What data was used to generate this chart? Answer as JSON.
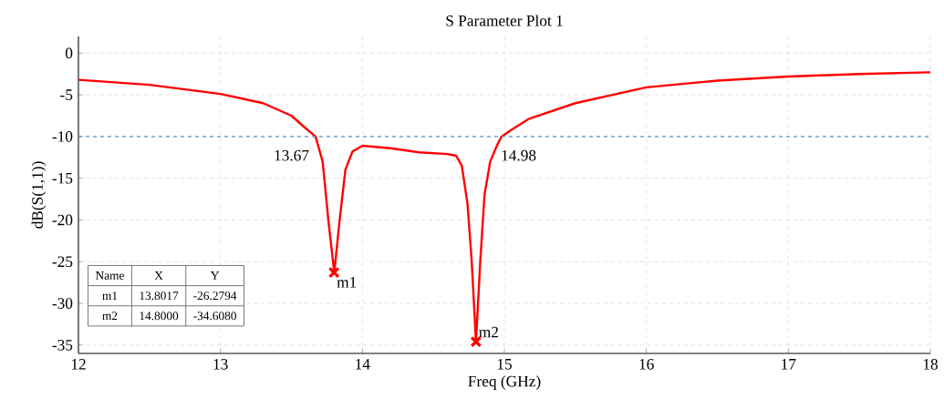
{
  "chart_data": {
    "type": "line",
    "title": "S Parameter Plot 1",
    "xlabel": "Freq (GHz)",
    "ylabel": "dB(S(1,1))",
    "xlim": [
      12,
      18
    ],
    "ylim": [
      -36,
      2
    ],
    "xticks": [
      12,
      13,
      14,
      15,
      16,
      17,
      18
    ],
    "yticks": [
      -35,
      -30,
      -25,
      -20,
      -15,
      -10,
      -5,
      0
    ],
    "grid": true,
    "series": [
      {
        "color": "#ff0000",
        "marker": "none",
        "line_style": "solid",
        "x": [
          12,
          12.5,
          13,
          13.3,
          13.5,
          13.6,
          13.67,
          13.72,
          13.76,
          13.8017,
          13.84,
          13.88,
          13.93,
          14.0,
          14.2,
          14.4,
          14.6,
          14.66,
          14.7,
          14.74,
          14.77,
          14.8,
          14.83,
          14.86,
          14.9,
          14.95,
          14.98,
          15.05,
          15.17,
          15.5,
          16,
          16.5,
          17,
          17.5,
          18
        ],
        "values": [
          -3.2,
          -3.8,
          -4.9,
          -6.0,
          -7.5,
          -9,
          -10,
          -13,
          -20,
          -26.3,
          -20,
          -14,
          -11.8,
          -11.1,
          -11.4,
          -11.9,
          -12.1,
          -12.3,
          -13.5,
          -18,
          -25,
          -34.6,
          -25,
          -17,
          -13,
          -11,
          -10,
          -9.2,
          -7.9,
          -6.0,
          -4.1,
          -3.3,
          -2.8,
          -2.5,
          -2.3
        ]
      },
      {
        "type": "scatter",
        "color": "#ff0000",
        "marker": "cross",
        "x": [
          13.8,
          14.8
        ],
        "values": [
          -26.3,
          -34.6
        ]
      }
    ],
    "ref_lines": [
      {
        "axis": "y",
        "value": -10,
        "color": "#5b9bc8",
        "line_style": "dashed"
      }
    ],
    "annotations": [
      {
        "text": "13.67",
        "x": 13.67,
        "y": -10
      },
      {
        "text": "14.98",
        "x": 14.98,
        "y": -10
      },
      {
        "text": "m1",
        "x": 13.8,
        "y": -26.3
      },
      {
        "text": "m2",
        "x": 14.8,
        "y": -34.6
      },
      "Name",
      "X",
      "Y",
      "m1",
      "13.8017",
      "-26.2794",
      "m2",
      "14.8000",
      "-34.6080"
    ]
  }
}
